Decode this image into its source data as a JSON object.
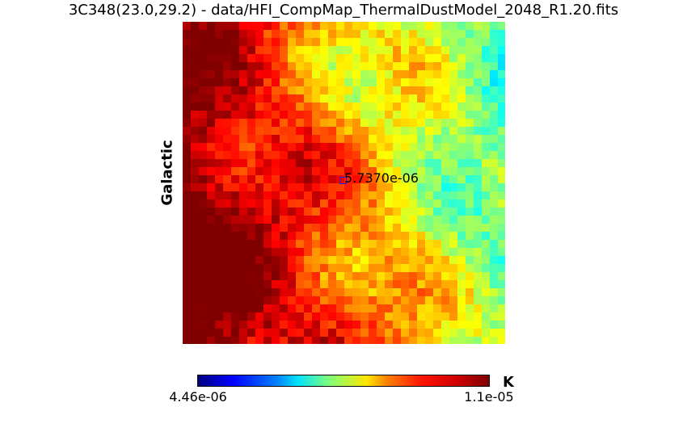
{
  "title": "3C348(23.0,29.2) - data/HFI_CompMap_ThermalDustModel_2048_R1.20.fits",
  "coord_label": "Galactic",
  "marker_label": "5.7370e-06",
  "colorbar": {
    "min_label": "4.46e-06",
    "max_label": "1.1e-05",
    "unit": "K",
    "colormap": "jet"
  }
}
